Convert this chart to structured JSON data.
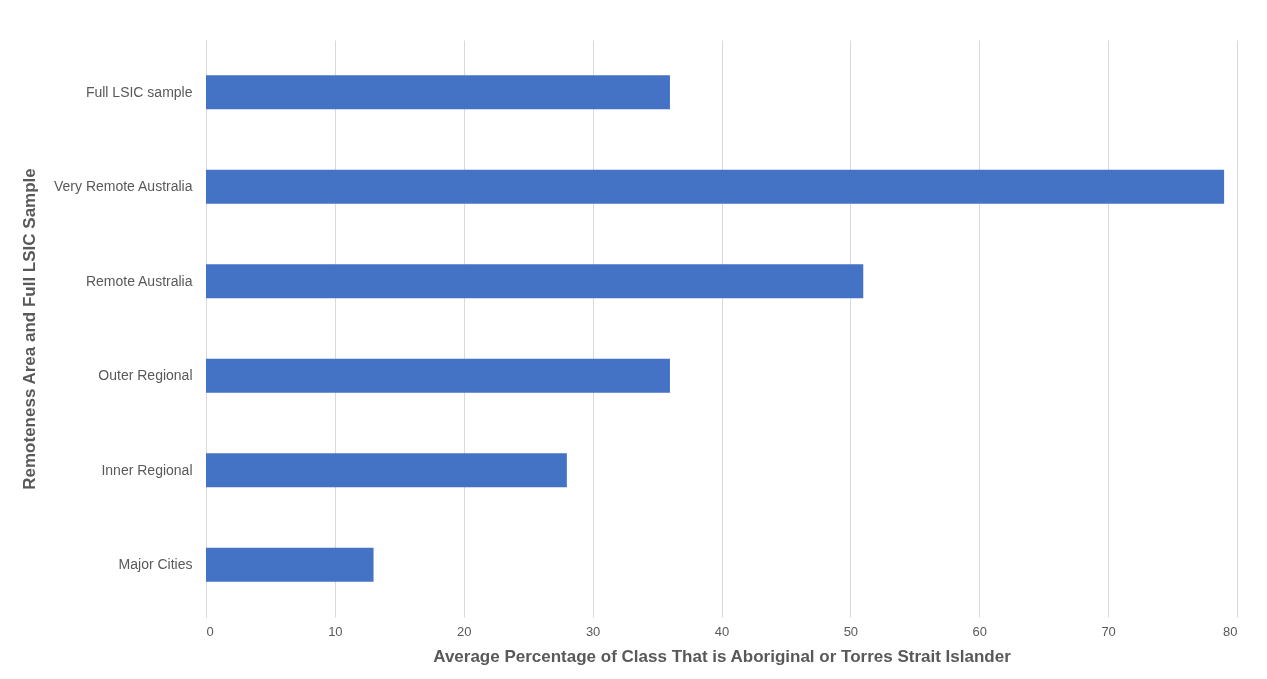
{
  "chart_data": {
    "type": "bar",
    "orientation": "horizontal",
    "xlabel": "Average Percentage of Class That is Aboriginal or Torres Strait Islander",
    "ylabel": "Remoteness Area and Full LSIC Sample",
    "categories": [
      "Full LSIC sample",
      "Very Remote Australia",
      "Remote Australia",
      "Outer Regional",
      "Inner Regional",
      "Major Cities"
    ],
    "values": [
      36,
      79,
      51,
      36,
      28,
      13
    ],
    "color": "#4472c4",
    "xlim": [
      0,
      80
    ],
    "xticks": [
      0,
      10,
      20,
      30,
      40,
      50,
      60,
      70,
      80
    ],
    "grid": "x"
  }
}
